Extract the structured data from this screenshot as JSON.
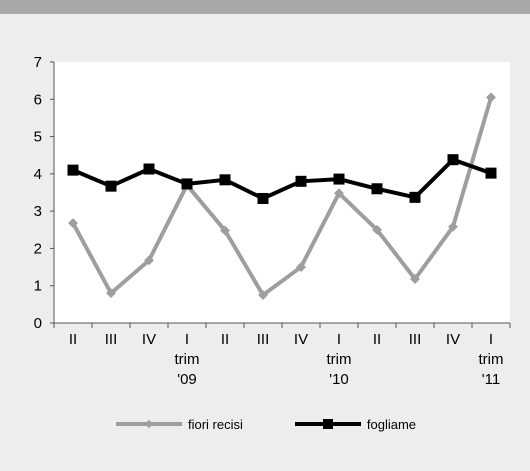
{
  "chart_data": {
    "type": "line",
    "title": "",
    "xlabel": "",
    "ylabel": "",
    "ylim": [
      0,
      7
    ],
    "yticks": [
      "0",
      "1",
      "2",
      "3",
      "4",
      "5",
      "6",
      "7"
    ],
    "categories": [
      [
        "II"
      ],
      [
        "III"
      ],
      [
        "IV"
      ],
      [
        "I",
        "trim",
        "'09"
      ],
      [
        "II"
      ],
      [
        "III"
      ],
      [
        "IV"
      ],
      [
        "I",
        "trim",
        "'10"
      ],
      [
        "II"
      ],
      [
        "III"
      ],
      [
        "IV"
      ],
      [
        "I",
        "trim",
        "'11"
      ]
    ],
    "series": [
      {
        "name": "fiori recisi",
        "color": "#9e9e9e",
        "marker": "diamond",
        "values": [
          2.68,
          0.8,
          1.68,
          3.7,
          2.48,
          0.75,
          1.5,
          3.48,
          2.5,
          1.18,
          2.58,
          6.05
        ]
      },
      {
        "name": "fogliame",
        "color": "#000000",
        "marker": "square",
        "values": [
          4.1,
          3.67,
          4.13,
          3.73,
          3.84,
          3.34,
          3.8,
          3.86,
          3.6,
          3.37,
          4.38,
          4.02
        ]
      }
    ],
    "legend_position": "bottom",
    "grid": false
  }
}
